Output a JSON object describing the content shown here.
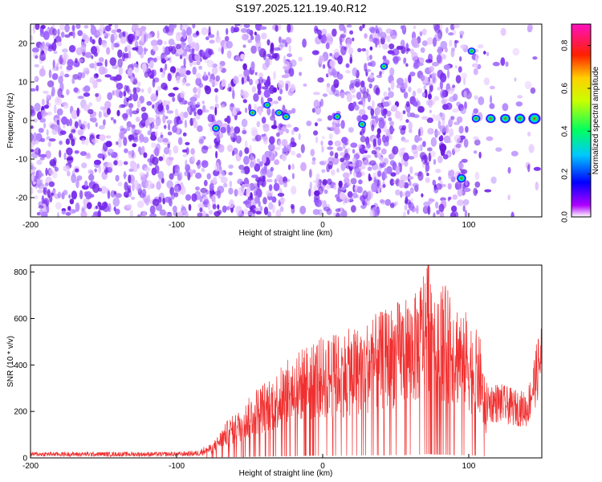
{
  "title": "S197.2025.121.19.40.R12",
  "chart_data": [
    {
      "type": "heatmap",
      "xlabel": "Height of straight line (km)",
      "ylabel": "Frequency (Hz)",
      "xlim": [
        -200,
        150
      ],
      "ylim": [
        -25,
        25
      ],
      "xticks": [
        -200,
        -100,
        0,
        100
      ],
      "yticks": [
        20,
        10,
        0,
        -10,
        -20
      ],
      "colorbar": {
        "label": "Normalized spectral amplitude",
        "range": [
          0.0,
          0.9
        ],
        "ticks": [
          "0.0",
          "0.2",
          "0.4",
          "0.6",
          "0.8"
        ]
      },
      "features": [
        {
          "x": -73,
          "y": -2,
          "amplitude": 0.35
        },
        {
          "x": -48,
          "y": 2,
          "amplitude": 0.3
        },
        {
          "x": -38,
          "y": 4,
          "amplitude": 0.3
        },
        {
          "x": -30,
          "y": 2,
          "amplitude": 0.3
        },
        {
          "x": -25,
          "y": 1,
          "amplitude": 0.35
        },
        {
          "x": 10,
          "y": 1,
          "amplitude": 0.3
        },
        {
          "x": 27,
          "y": -1,
          "amplitude": 0.35
        },
        {
          "x": 42,
          "y": 14,
          "amplitude": 0.3
        },
        {
          "x": 95,
          "y": -15,
          "amplitude": 0.5
        },
        {
          "x": 102,
          "y": 18,
          "amplitude": 0.35
        },
        {
          "x": 105,
          "y": 0.5,
          "amplitude": 0.4
        },
        {
          "x": 115,
          "y": 0.5,
          "amplitude": 0.55
        },
        {
          "x": 125,
          "y": 0.5,
          "amplitude": 0.6
        },
        {
          "x": 135,
          "y": 0.5,
          "amplitude": 0.65
        },
        {
          "x": 145,
          "y": 0.5,
          "amplitude": 0.8
        }
      ]
    },
    {
      "type": "line",
      "xlabel": "Height of straight line (km)",
      "ylabel": "SNR (10 * v/v)",
      "xlim": [
        -200,
        150
      ],
      "ylim": [
        0,
        830
      ],
      "xticks": [
        -200,
        -100,
        0,
        100
      ],
      "yticks": [
        0,
        200,
        400,
        600,
        800
      ],
      "color": "#f03030",
      "x": [
        -200,
        -180,
        -160,
        -140,
        -120,
        -100,
        -85,
        -75,
        -65,
        -55,
        -45,
        -35,
        -25,
        -15,
        -5,
        5,
        15,
        25,
        35,
        45,
        55,
        65,
        72,
        80,
        90,
        100,
        108,
        112,
        120,
        130,
        140,
        150
      ],
      "y": [
        20,
        20,
        20,
        20,
        20,
        20,
        25,
        60,
        150,
        200,
        280,
        320,
        380,
        430,
        470,
        480,
        500,
        520,
        560,
        590,
        630,
        650,
        830,
        700,
        640,
        560,
        470,
        250,
        250,
        230,
        220,
        470
      ]
    }
  ]
}
